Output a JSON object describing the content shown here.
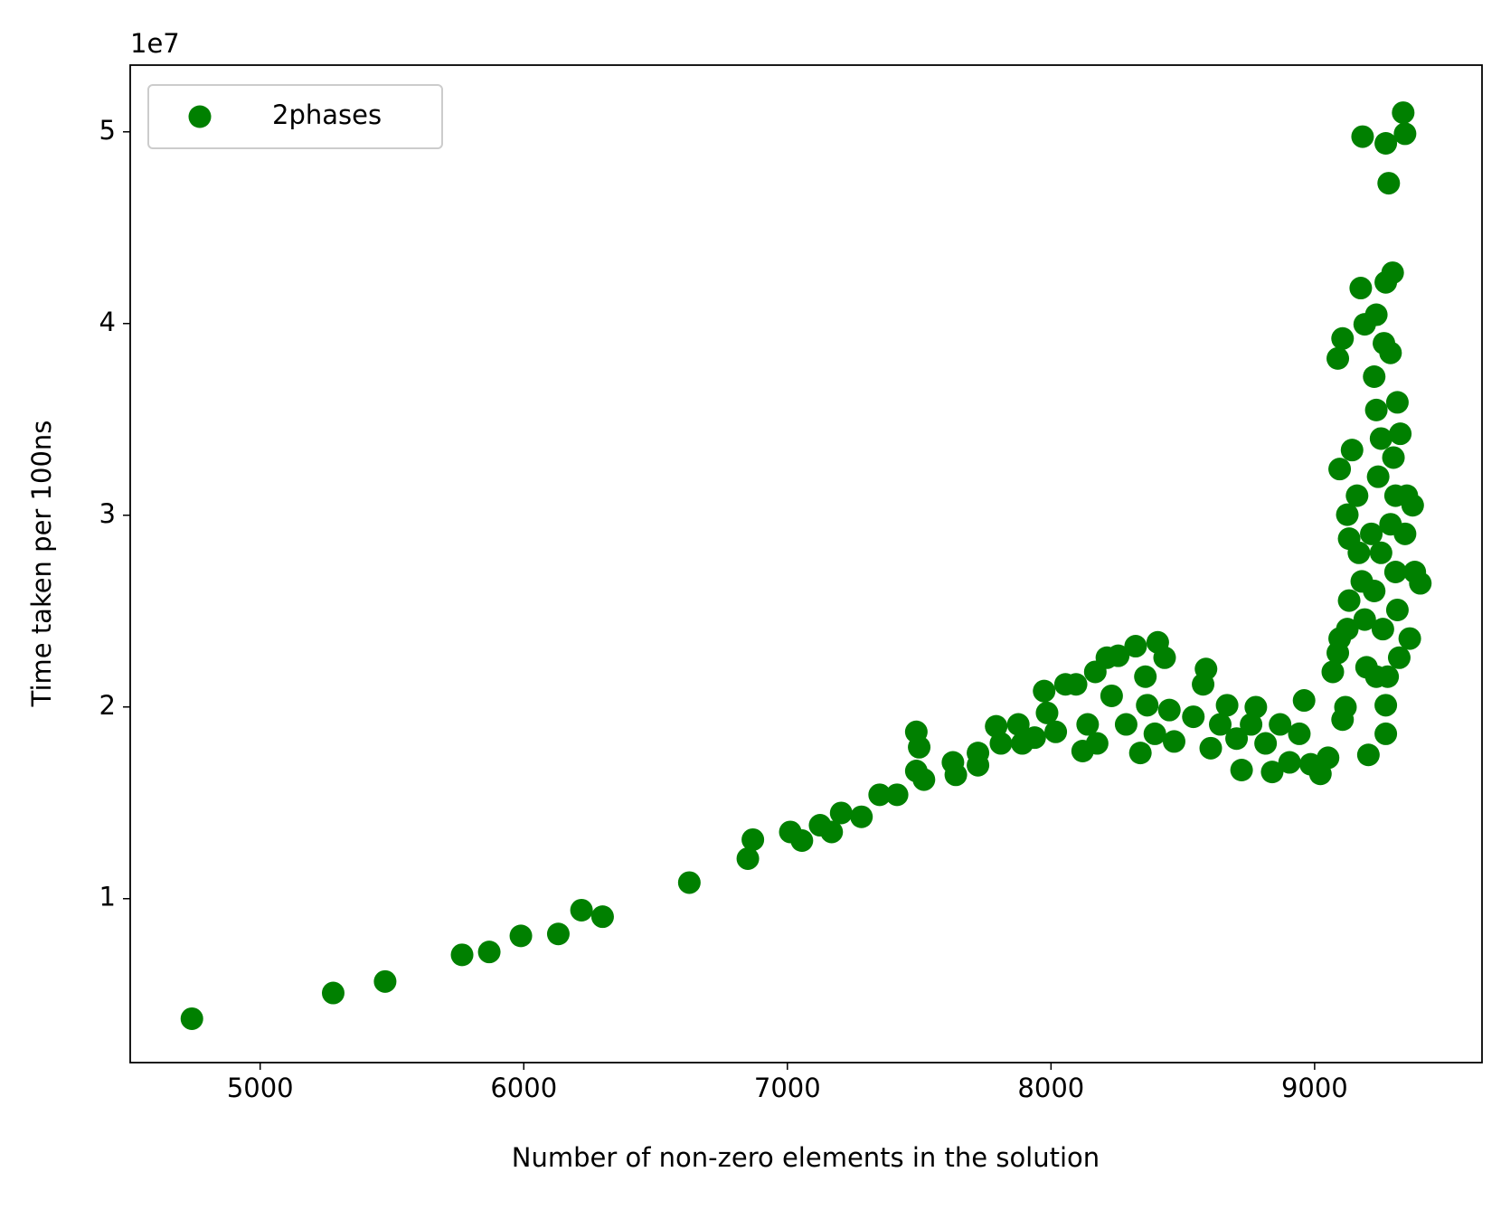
{
  "chart_data": {
    "type": "scatter",
    "x_label": "Number of non-zero elements in the solution",
    "y_label": "Time taken per 100ns",
    "y_offset_label": "1e7",
    "xlim": [
      4507,
      9635
    ],
    "ylim": [
      1450000,
      53480000
    ],
    "xticks": [
      5000,
      6000,
      7000,
      8000,
      9000
    ],
    "yticks": [
      {
        "value": 10000000,
        "label": "1"
      },
      {
        "value": 20000000,
        "label": "2"
      },
      {
        "value": 30000000,
        "label": "3"
      },
      {
        "value": 40000000,
        "label": "4"
      },
      {
        "value": 50000000,
        "label": "5"
      }
    ],
    "legend": "upper left",
    "series": [
      {
        "name": "2phases",
        "color": "#008000",
        "x": [
          4741,
          5277,
          5474,
          5766,
          5869,
          5989,
          6131,
          6219,
          6299,
          6628,
          6850,
          6869,
          7011,
          7055,
          7124,
          7168,
          7204,
          7281,
          7350,
          7416,
          7489,
          7500,
          7489,
          7518,
          7628,
          7639,
          7723,
          7723,
          7792,
          7810,
          7876,
          7891,
          7938,
          7974,
          7985,
          8018,
          8055,
          8095,
          8120,
          8139,
          8175,
          8168,
          8212,
          8230,
          8255,
          8285,
          8321,
          8339,
          8358,
          8365,
          8394,
          8405,
          8431,
          8449,
          8467,
          8540,
          8577,
          8588,
          8606,
          8642,
          8668,
          8704,
          8723,
          8759,
          8777,
          8814,
          8839,
          8869,
          8905,
          8942,
          8960,
          8985,
          9022,
          9051,
          9069,
          9088,
          9095,
          9106,
          9117,
          9124,
          9131,
          9124,
          9131,
          9095,
          9088,
          9106,
          9142,
          9161,
          9168,
          9179,
          9190,
          9197,
          9204,
          9175,
          9182,
          9190,
          9226,
          9234,
          9234,
          9252,
          9263,
          9270,
          9270,
          9281,
          9288,
          9296,
          9299,
          9307,
          9307,
          9314,
          9321,
          9314,
          9325,
          9270,
          9270,
          9277,
          9288,
          9336,
          9343,
          9343,
          9350,
          9361,
          9372,
          9380,
          9401,
          9215,
          9226,
          9241,
          9252,
          9259,
          9234
        ],
        "values": [
          3740000,
          5080000,
          5680000,
          7070000,
          7220000,
          8060000,
          8160000,
          9400000,
          9060000,
          10840000,
          12090000,
          13080000,
          13480000,
          13030000,
          13830000,
          13480000,
          14470000,
          14270000,
          15420000,
          15420000,
          18700000,
          17900000,
          16660000,
          16210000,
          17110000,
          16460000,
          17600000,
          16960000,
          18990000,
          18100000,
          19090000,
          18100000,
          18400000,
          20830000,
          19690000,
          18700000,
          21180000,
          21180000,
          17700000,
          19090000,
          18100000,
          21830000,
          22570000,
          20580000,
          22670000,
          19090000,
          23170000,
          17600000,
          21580000,
          20090000,
          18600000,
          23370000,
          22570000,
          19840000,
          18200000,
          19490000,
          21180000,
          21980000,
          17850000,
          19090000,
          20090000,
          18350000,
          16710000,
          19090000,
          19990000,
          18100000,
          16610000,
          19090000,
          17110000,
          18600000,
          20340000,
          17010000,
          16510000,
          17350000,
          21830000,
          22820000,
          23570000,
          19340000,
          19990000,
          24060000,
          25550000,
          30030000,
          28780000,
          32410000,
          38180000,
          39220000,
          33400000,
          31020000,
          28040000,
          26550000,
          24560000,
          22070000,
          17500000,
          41850000,
          49750000,
          39960000,
          37230000,
          40460000,
          35490000,
          34000000,
          38970000,
          42150000,
          49400000,
          47320000,
          38470000,
          42650000,
          33010000,
          31020000,
          27040000,
          25060000,
          22570000,
          35890000,
          34250000,
          20090000,
          18600000,
          21580000,
          29530000,
          51000000,
          49900000,
          29030000,
          31020000,
          23570000,
          30520000,
          27040000,
          26450000,
          29030000,
          26050000,
          32010000,
          28040000,
          24060000,
          21580000
        ]
      }
    ]
  }
}
